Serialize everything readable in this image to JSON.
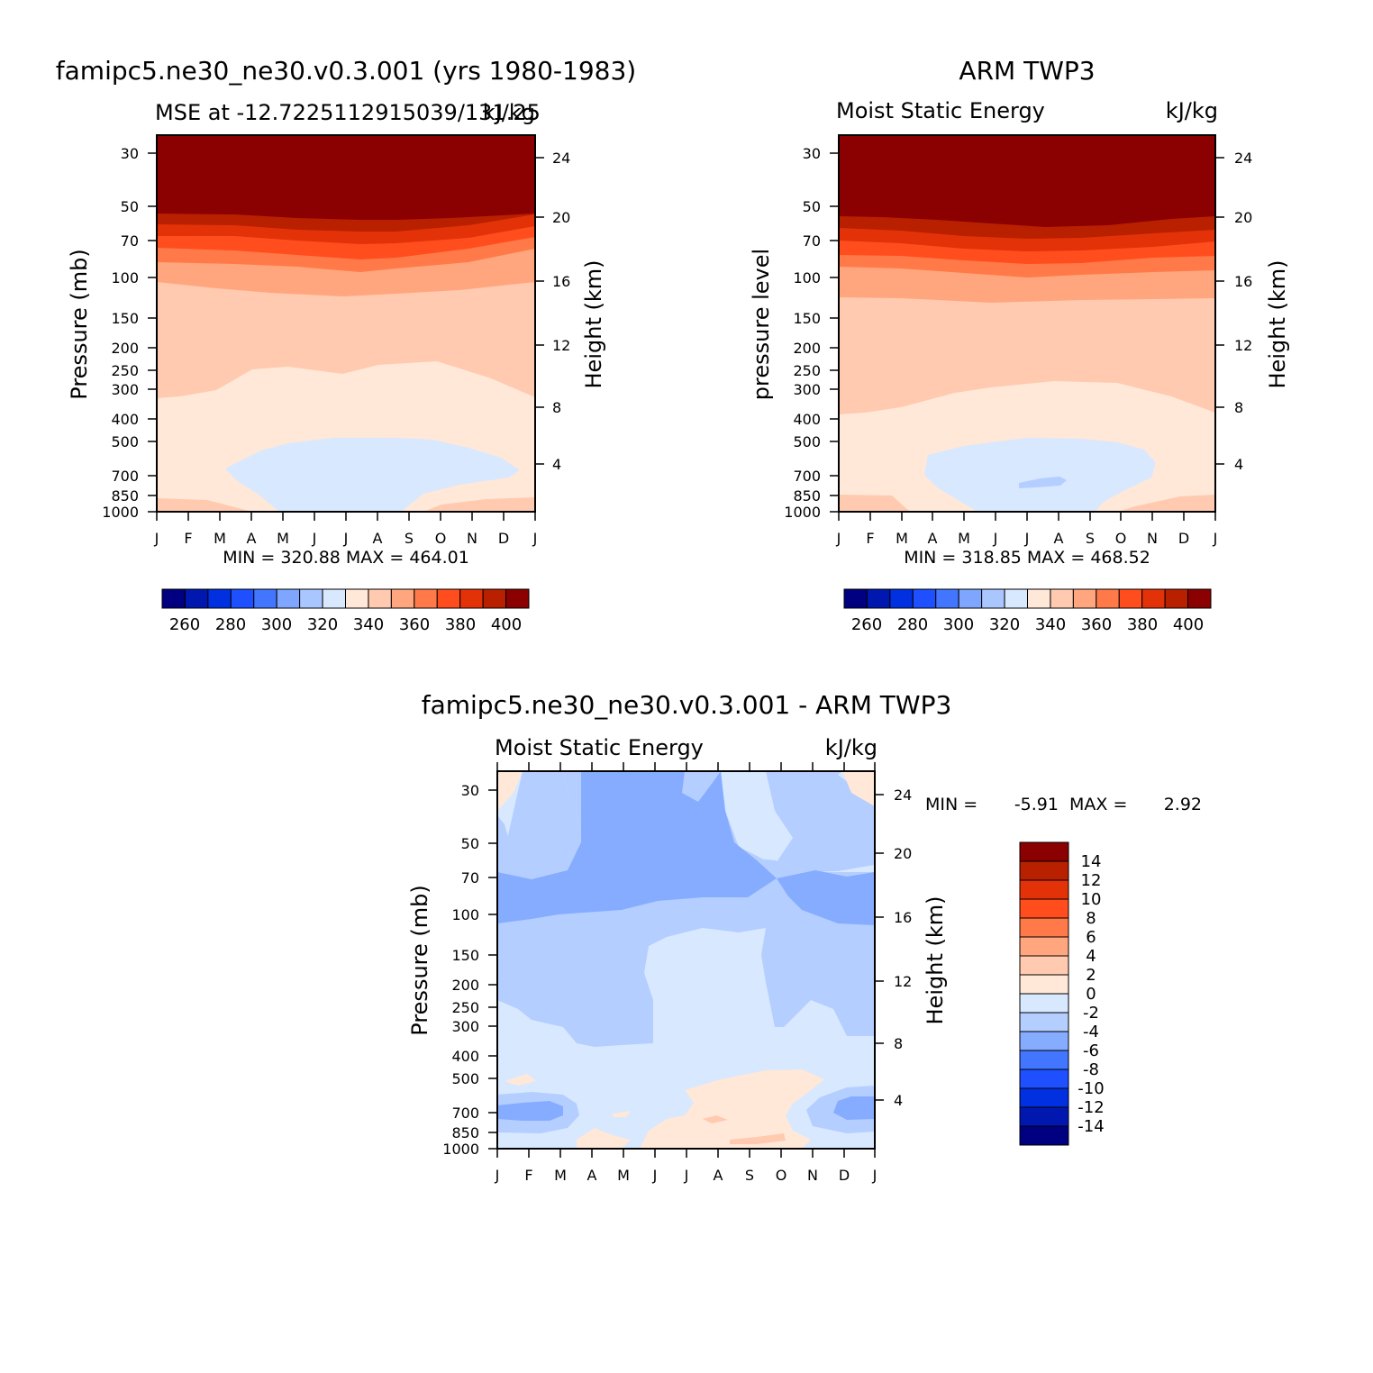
{
  "chart_data": [
    {
      "type": "heatmap",
      "title": "famipc5.ne30_ne30.v0.3.001 (yrs 1980-1983)",
      "subtitle_left": "MSE at -12.7225112915039/131.25",
      "subtitle_right": "kJ/kg",
      "ylabel": "Pressure (mb)",
      "ylabel_right": "Height (km)",
      "xtick_labels": [
        "J",
        "F",
        "M",
        "A",
        "M",
        "J",
        "J",
        "A",
        "S",
        "O",
        "N",
        "D",
        "J"
      ],
      "yticks": [
        30,
        50,
        70,
        100,
        150,
        200,
        250,
        300,
        400,
        500,
        700,
        850,
        1000
      ],
      "ytick_labels": [
        "30",
        "50",
        "70",
        "100",
        "150",
        "200",
        "250",
        "300",
        "400",
        "500",
        "700",
        "850",
        "1000"
      ],
      "yticks_right": [
        "24",
        "20",
        "16",
        "12",
        "8",
        "4"
      ],
      "stats_text": "MIN = 320.88 MAX = 464.01",
      "min": 320.88,
      "max": 464.01,
      "colorbar_labels": [
        "260",
        "280",
        "300",
        "320",
        "340",
        "360",
        "380",
        "400"
      ],
      "contour_bands_top_to_bottom": [
        "> 400",
        "390-400",
        "380-390",
        "370-380",
        "360-370",
        "350-360",
        "340-350",
        "330-340",
        "320-330",
        "330-340"
      ]
    },
    {
      "type": "heatmap",
      "title": "ARM TWP3",
      "subtitle_left": "Moist Static Energy",
      "subtitle_right": "kJ/kg",
      "ylabel": "pressure level",
      "ylabel_right": "Height (km)",
      "xtick_labels": [
        "J",
        "F",
        "M",
        "A",
        "M",
        "J",
        "J",
        "A",
        "S",
        "O",
        "N",
        "D",
        "J"
      ],
      "ytick_labels": [
        "30",
        "50",
        "70",
        "100",
        "150",
        "200",
        "250",
        "300",
        "400",
        "500",
        "700",
        "850",
        "1000"
      ],
      "yticks_right": [
        "24",
        "20",
        "16",
        "12",
        "8",
        "4"
      ],
      "stats_text": "MIN = 318.85 MAX = 468.52",
      "min": 318.85,
      "max": 468.52,
      "colorbar_labels": [
        "260",
        "280",
        "300",
        "320",
        "340",
        "360",
        "380",
        "400"
      ]
    },
    {
      "type": "heatmap",
      "title": "famipc5.ne30_ne30.v0.3.001 - ARM TWP3",
      "subtitle_left": "Moist Static Energy",
      "subtitle_right": "kJ/kg",
      "ylabel": "Pressure (mb)",
      "ylabel_right": "Height (km)",
      "xtick_labels": [
        "J",
        "F",
        "M",
        "A",
        "M",
        "J",
        "J",
        "A",
        "S",
        "O",
        "N",
        "D",
        "J"
      ],
      "ytick_labels": [
        "30",
        "50",
        "70",
        "100",
        "150",
        "200",
        "250",
        "300",
        "400",
        "500",
        "700",
        "850",
        "1000"
      ],
      "yticks_right": [
        "24",
        "20",
        "16",
        "12",
        "8",
        "4"
      ],
      "stats_min_text": "MIN =",
      "stats_min_value": "-5.91",
      "stats_max_text": "MAX =",
      "stats_max_value": "2.92",
      "min": -5.91,
      "max": 2.92,
      "colorbar_labels": [
        "14",
        "12",
        "10",
        "8",
        "6",
        "4",
        "2",
        "0",
        "-2",
        "-4",
        "-6",
        "-8",
        "-10",
        "-12",
        "-14"
      ]
    }
  ],
  "colors": {
    "abs_scale": [
      "#000080",
      "#0018b0",
      "#0030e0",
      "#1e50ff",
      "#4276ff",
      "#7ea6ff",
      "#aac6ff",
      "#d8e8ff",
      "#ffe8d8",
      "#ffcab0",
      "#ffa67e",
      "#ff7a48",
      "#ff4d1e",
      "#e43208",
      "#b82000",
      "#8b0000"
    ],
    "diff_scale_top_to_bottom": [
      "#8b0000",
      "#b82000",
      "#e43208",
      "#ff4d1e",
      "#ff7a48",
      "#ffa67e",
      "#ffcab0",
      "#ffe8d8",
      "#d8e8ff",
      "#b4ceff",
      "#86acff",
      "#4276ff",
      "#1e50ff",
      "#0030e0",
      "#0018b0",
      "#000080"
    ]
  }
}
